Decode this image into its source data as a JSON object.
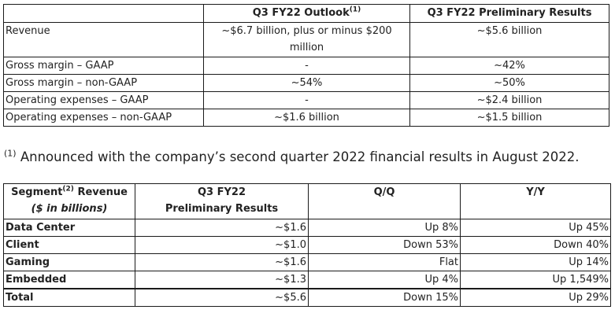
{
  "outlook": {
    "headers": {
      "blank": "",
      "outlook": "Q3 FY22 Outlook",
      "outlook_note": "(1)",
      "preliminary": "Q3 FY22 Preliminary Results"
    },
    "rows": [
      {
        "metric": "Revenue",
        "outlook": "~$6.7 billion, plus or minus $200 million",
        "preliminary": "~$5.6 billion"
      },
      {
        "metric": "Gross margin – GAAP",
        "outlook": "-",
        "preliminary": "~42%"
      },
      {
        "metric": "Gross margin – non-GAAP",
        "outlook": "~54%",
        "preliminary": "~50%"
      },
      {
        "metric": "Operating expenses – GAAP",
        "outlook": "-",
        "preliminary": "~$2.4 billion"
      },
      {
        "metric": "Operating expenses – non-GAAP",
        "outlook": "~$1.6 billion",
        "preliminary": "~$1.5 billion"
      }
    ]
  },
  "footnote": {
    "marker": "(1)",
    "text": " Announced with the company’s second quarter 2022 financial results in August 2022."
  },
  "segments": {
    "headers": {
      "segment_a": "Segment",
      "segment_note": "(2)",
      "segment_b": " Revenue",
      "segment_sub": "($ in billions)",
      "prelim_line1": "Q3 FY22",
      "prelim_line2": "Preliminary Results",
      "qq": "Q/Q",
      "yy": "Y/Y"
    },
    "rows": [
      {
        "segment": "Data Center",
        "value": "~$1.6",
        "qq": "Up 8%",
        "yy": "Up 45%"
      },
      {
        "segment": "Client",
        "value": "~$1.0",
        "qq": "Down 53%",
        "yy": "Down 40%"
      },
      {
        "segment": "Gaming",
        "value": "~$1.6",
        "qq": "Flat",
        "yy": "Up 14%"
      },
      {
        "segment": "Embedded",
        "value": "~$1.3",
        "qq": "Up 4%",
        "yy": "Up 1,549%"
      },
      {
        "segment": "Total",
        "value": "~$5.6",
        "qq": "Down 15%",
        "yy": "Up 29%"
      }
    ]
  }
}
